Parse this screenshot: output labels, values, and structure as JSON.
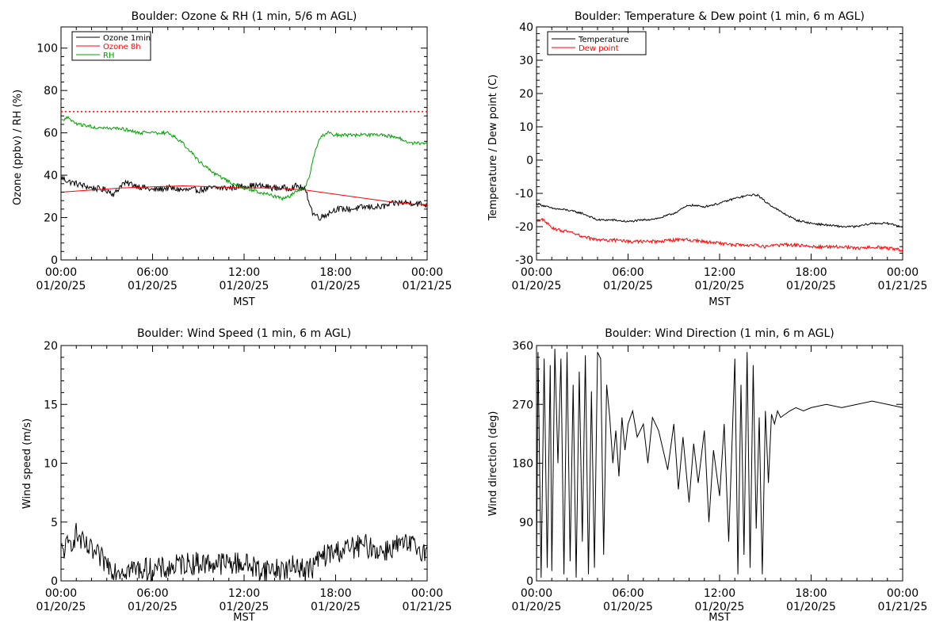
{
  "chart_data": [
    {
      "type": "line",
      "title": "Boulder: Ozone & RH (1 min, 5/6 m AGL)",
      "xlabel": "MST",
      "ylabel": "Ozone (ppbv) / RH (%)",
      "xlim": [
        "00:00 01/20/25",
        "00:00 01/21/25"
      ],
      "ylim": [
        0,
        110
      ],
      "xticks": [
        {
          "t": 0,
          "time": "00:00",
          "date": "01/20/25"
        },
        {
          "t": 6,
          "time": "06:00",
          "date": "01/20/25"
        },
        {
          "t": 12,
          "time": "12:00",
          "date": "01/20/25"
        },
        {
          "t": 18,
          "time": "18:00",
          "date": "01/20/25"
        },
        {
          "t": 24,
          "time": "00:00",
          "date": "01/21/25"
        }
      ],
      "yticks": [
        "0",
        "20",
        "40",
        "60",
        "80",
        "100"
      ],
      "legend_position": "top-left",
      "reference_line": {
        "y": 70,
        "color": "#ff0000",
        "style": "dotted"
      },
      "series": [
        {
          "name": "Ozone 1min",
          "color": "#000000",
          "noise": 1.5,
          "x": [
            0,
            0.5,
            1,
            2,
            3,
            3.5,
            4,
            4.5,
            5,
            6,
            7,
            8,
            9,
            10,
            11,
            12,
            13,
            14,
            15,
            15.5,
            16,
            16.3,
            16.5,
            17,
            17.5,
            18,
            19,
            20,
            21,
            22,
            23,
            24
          ],
          "y": [
            39,
            37,
            36,
            34,
            33,
            31,
            36,
            36,
            35,
            33,
            34,
            33,
            33,
            34,
            34,
            35,
            35,
            34,
            34,
            35,
            33,
            27,
            22,
            20,
            22,
            24,
            24,
            25,
            25,
            27,
            27,
            26
          ]
        },
        {
          "name": "Ozone 8h",
          "color": "#ff0000",
          "noise": 0,
          "x": [
            0,
            2,
            4,
            6,
            8,
            10,
            12,
            14,
            16,
            18,
            20,
            22,
            24
          ],
          "y": [
            32,
            33,
            34,
            34.5,
            35,
            34.5,
            34,
            34,
            33,
            31,
            29,
            27,
            26
          ]
        },
        {
          "name": "RH",
          "color": "#00a000",
          "noise": 0.8,
          "x": [
            0,
            0.5,
            1,
            2,
            3,
            4,
            5,
            6,
            7,
            7.5,
            8,
            9,
            10,
            11,
            12,
            13,
            14,
            14.5,
            15,
            15.5,
            16,
            16.3,
            16.6,
            17,
            17.5,
            18,
            19,
            20,
            21,
            22,
            23,
            24
          ],
          "y": [
            66,
            67,
            64,
            63,
            62,
            62,
            60,
            60,
            60,
            58,
            55,
            47,
            41,
            37,
            34,
            32,
            30,
            29,
            30,
            33,
            34,
            40,
            50,
            58,
            60,
            59,
            59,
            59,
            59,
            58,
            55,
            55
          ]
        }
      ]
    },
    {
      "type": "line",
      "title": "Boulder: Temperature & Dew point (1 min, 6 m AGL)",
      "xlabel": "MST",
      "ylabel": "Temperature / Dew point (C)",
      "xlim": [
        "00:00 01/20/25",
        "00:00 01/21/25"
      ],
      "ylim": [
        -30,
        40
      ],
      "xticks": [
        {
          "t": 0,
          "time": "00:00",
          "date": "01/20/25"
        },
        {
          "t": 6,
          "time": "06:00",
          "date": "01/20/25"
        },
        {
          "t": 12,
          "time": "12:00",
          "date": "01/20/25"
        },
        {
          "t": 18,
          "time": "18:00",
          "date": "01/20/25"
        },
        {
          "t": 24,
          "time": "00:00",
          "date": "01/21/25"
        }
      ],
      "yticks": [
        "-30",
        "-20",
        "-10",
        "0",
        "10",
        "20",
        "30",
        "40"
      ],
      "legend_position": "top-left",
      "series": [
        {
          "name": "Temperature",
          "color": "#000000",
          "noise": 0.3,
          "x": [
            0,
            1,
            2,
            3,
            4,
            5,
            6,
            7,
            8,
            9,
            10,
            11,
            12,
            13,
            14,
            14.5,
            15,
            16,
            17,
            18,
            19,
            20,
            21,
            22,
            23,
            24
          ],
          "y": [
            -13,
            -14.5,
            -15,
            -16,
            -18,
            -18,
            -18.5,
            -18,
            -17.5,
            -16,
            -13.5,
            -14,
            -13,
            -11.5,
            -10.5,
            -10.5,
            -12.5,
            -15.5,
            -18,
            -19,
            -19.5,
            -20,
            -20,
            -19,
            -19,
            -20
          ]
        },
        {
          "name": "Dew point",
          "color": "#ff0000",
          "noise": 0.5,
          "x": [
            0,
            0.5,
            1,
            2,
            3,
            4,
            5,
            6,
            7,
            8,
            9,
            10,
            11,
            12,
            13,
            14,
            15,
            16,
            17,
            18,
            19,
            20,
            21,
            22,
            23,
            24
          ],
          "y": [
            -18,
            -18,
            -20.5,
            -21.5,
            -23,
            -24,
            -24,
            -24.5,
            -24.5,
            -24.5,
            -24,
            -24,
            -24.5,
            -25,
            -25.5,
            -25.5,
            -26,
            -25.5,
            -25.5,
            -26,
            -26,
            -26,
            -26.5,
            -26,
            -26.5,
            -27
          ]
        }
      ]
    },
    {
      "type": "line",
      "title": "Boulder: Wind Speed (1 min, 6 m AGL)",
      "xlabel": "MST",
      "ylabel": "Wind speed (m/s)",
      "xlim": [
        "00:00 01/20/25",
        "00:00 01/21/25"
      ],
      "ylim": [
        0,
        20
      ],
      "xticks": [
        {
          "t": 0,
          "time": "00:00",
          "date": "01/20/25"
        },
        {
          "t": 6,
          "time": "06:00",
          "date": "01/20/25"
        },
        {
          "t": 12,
          "time": "12:00",
          "date": "01/20/25"
        },
        {
          "t": 18,
          "time": "18:00",
          "date": "01/20/25"
        },
        {
          "t": 24,
          "time": "00:00",
          "date": "01/21/25"
        }
      ],
      "yticks": [
        "0",
        "5",
        "10",
        "15",
        "20"
      ],
      "series": [
        {
          "name": "",
          "color": "#000000",
          "noise": 1.0,
          "x": [
            0,
            0.5,
            1,
            1.5,
            2,
            2.5,
            3,
            3.5,
            4,
            5,
            6,
            7,
            8,
            9,
            10,
            11,
            12,
            13,
            14,
            15,
            15.5,
            16,
            16.5,
            17,
            18,
            19,
            20,
            21,
            22,
            23,
            24
          ],
          "y": [
            2.5,
            3,
            4,
            3,
            2.5,
            2,
            1.5,
            1,
            1,
            1,
            1,
            1,
            1.5,
            1.5,
            1.5,
            1.5,
            1.5,
            1,
            1,
            1,
            1.5,
            0.8,
            1.2,
            2,
            2.5,
            2.8,
            3,
            2.5,
            3,
            3,
            2.5
          ]
        }
      ]
    },
    {
      "type": "line",
      "title": "Boulder: Wind Direction (1 min, 6 m AGL)",
      "xlabel": "MST",
      "ylabel": "Wind direction (deg)",
      "xlim": [
        "00:00 01/20/25",
        "00:00 01/21/25"
      ],
      "ylim": [
        0,
        360
      ],
      "xticks": [
        {
          "t": 0,
          "time": "00:00",
          "date": "01/20/25"
        },
        {
          "t": 6,
          "time": "06:00",
          "date": "01/20/25"
        },
        {
          "t": 12,
          "time": "12:00",
          "date": "01/20/25"
        },
        {
          "t": 18,
          "time": "18:00",
          "date": "01/20/25"
        },
        {
          "t": 24,
          "time": "00:00",
          "date": "01/21/25"
        }
      ],
      "yticks": [
        "0",
        "90",
        "180",
        "270",
        "360"
      ],
      "series": [
        {
          "name": "",
          "color": "#000000",
          "noise": 0,
          "x": [
            0,
            0.1,
            0.3,
            0.5,
            0.7,
            0.9,
            1,
            1.2,
            1.4,
            1.6,
            1.8,
            2,
            2.2,
            2.4,
            2.6,
            2.8,
            3,
            3.2,
            3.4,
            3.6,
            3.8,
            4,
            4.2,
            4.4,
            4.6,
            4.8,
            5,
            5.2,
            5.4,
            5.6,
            5.8,
            6,
            6.3,
            6.6,
            7,
            7.3,
            7.6,
            8,
            8.3,
            8.6,
            9,
            9.3,
            9.6,
            10,
            10.3,
            10.6,
            11,
            11.3,
            11.6,
            12,
            12.3,
            12.6,
            13,
            13.2,
            13.4,
            13.6,
            13.8,
            14,
            14.2,
            14.4,
            14.6,
            14.8,
            15,
            15.2,
            15.4,
            15.6,
            15.8,
            16,
            16.3,
            16.6,
            17,
            17.5,
            18,
            19,
            20,
            21,
            22,
            23,
            24
          ],
          "y": [
            10,
            350,
            5,
            340,
            20,
            330,
            15,
            355,
            180,
            340,
            10,
            350,
            30,
            300,
            5,
            320,
            60,
            345,
            10,
            290,
            20,
            350,
            340,
            40,
            300,
            250,
            180,
            230,
            160,
            250,
            200,
            240,
            260,
            220,
            240,
            180,
            250,
            230,
            200,
            170,
            240,
            140,
            220,
            120,
            210,
            150,
            230,
            90,
            200,
            130,
            240,
            60,
            340,
            10,
            300,
            40,
            350,
            20,
            330,
            80,
            250,
            10,
            260,
            150,
            255,
            240,
            260,
            250,
            255,
            260,
            265,
            260,
            265,
            270,
            265,
            270,
            275,
            270,
            265
          ]
        }
      ]
    }
  ]
}
